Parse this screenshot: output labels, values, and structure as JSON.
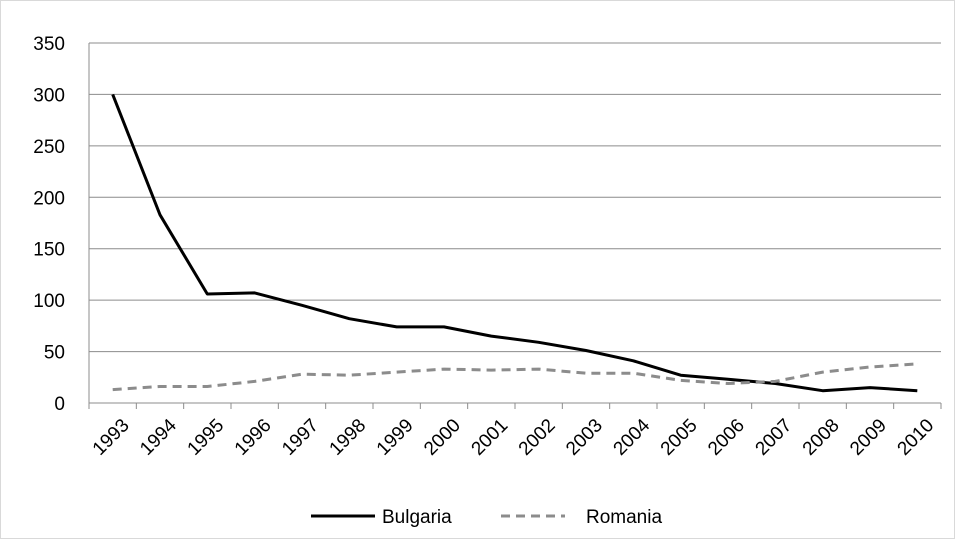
{
  "chart_data": {
    "type": "line",
    "x": [
      1993,
      1994,
      1995,
      1996,
      1997,
      1998,
      1999,
      2000,
      2001,
      2002,
      2003,
      2004,
      2005,
      2006,
      2007,
      2008,
      2009,
      2010
    ],
    "ylim": [
      0,
      350
    ],
    "yticks": [
      0,
      50,
      100,
      150,
      200,
      250,
      300,
      350
    ],
    "grid": true,
    "legend_position": "bottom",
    "series": [
      {
        "name": "Bulgaria",
        "color": "#000000",
        "dash": "solid",
        "values": [
          300,
          183,
          106,
          107,
          95,
          82,
          74,
          74,
          65,
          59,
          51,
          41,
          27,
          23,
          19,
          12,
          15,
          12
        ]
      },
      {
        "name": "Romania",
        "color": "#8c8c8c",
        "dash": "dashed",
        "values": [
          13,
          16,
          16,
          21,
          28,
          27,
          30,
          33,
          32,
          33,
          29,
          29,
          22,
          19,
          21,
          30,
          35,
          38
        ]
      }
    ]
  }
}
